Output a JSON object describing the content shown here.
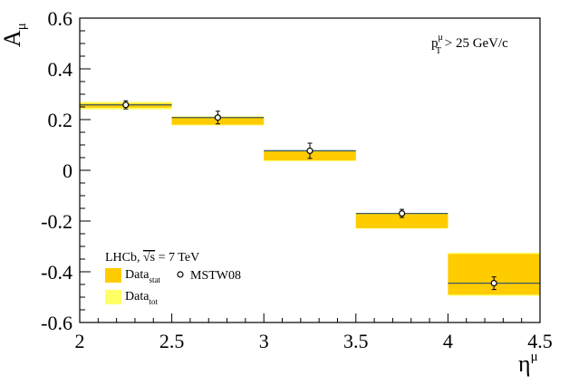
{
  "chart_data": {
    "type": "bar",
    "xlabel": "η",
    "xlabel_sup": "μ",
    "ylabel": "A",
    "ylabel_sub": "μ",
    "xlim": [
      2,
      4.5
    ],
    "ylim": [
      -0.6,
      0.6
    ],
    "x_ticks": [
      2,
      2.5,
      3,
      3.5,
      4,
      4.5
    ],
    "x_tick_labels": [
      "2",
      "2.5",
      "3",
      "3.5",
      "4",
      "4.5"
    ],
    "y_ticks": [
      -0.6,
      -0.4,
      -0.2,
      0,
      0.2,
      0.4,
      0.6
    ],
    "y_tick_labels": [
      "-0.6",
      "-0.4",
      "-0.2",
      "0",
      "0.2",
      "0.4",
      "0.6"
    ],
    "grid": false,
    "annotation": {
      "p": "p",
      "sup": "μ",
      "sub": "T",
      "rest": " > 25 GeV/c"
    },
    "legend": {
      "placement": "bottom-left",
      "title_main": "LHCb, ",
      "title_sqrt": "√s",
      "title_rest": " = 7 TeV",
      "stat_main": "Data",
      "stat_sub": "stat",
      "tot_main": "Data",
      "tot_sub": "tot",
      "theory": "MSTW08"
    },
    "colors": {
      "data_stat": "#ffcc00",
      "data_tot": "#ffff66",
      "theory_line": "#3a5a68"
    },
    "bins": [
      {
        "x_low": 2.0,
        "x_high": 2.5,
        "data_center": 0.255,
        "stat_err": 0.008,
        "tot_err": 0.015,
        "theory": 0.258,
        "theory_err": 0.016
      },
      {
        "x_low": 2.5,
        "x_high": 3.0,
        "data_center": 0.195,
        "stat_err": 0.015,
        "tot_err": 0.018,
        "theory": 0.208,
        "theory_err": 0.025
      },
      {
        "x_low": 3.0,
        "x_high": 3.5,
        "data_center": 0.057,
        "stat_err": 0.018,
        "tot_err": 0.021,
        "theory": 0.077,
        "theory_err": 0.03
      },
      {
        "x_low": 3.5,
        "x_high": 4.0,
        "data_center": -0.2,
        "stat_err": 0.028,
        "tot_err": 0.03,
        "theory": -0.17,
        "theory_err": 0.016
      },
      {
        "x_low": 4.0,
        "x_high": 4.5,
        "data_center": -0.41,
        "stat_err": 0.08,
        "tot_err": 0.085,
        "theory": -0.445,
        "theory_err": 0.025
      }
    ]
  }
}
